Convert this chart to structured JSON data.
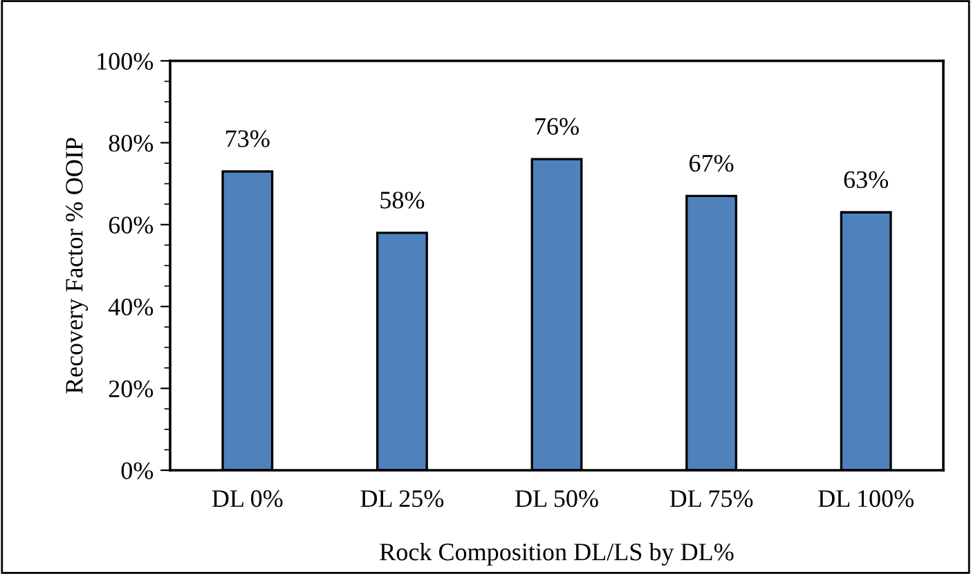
{
  "chart_data": {
    "type": "bar",
    "xlabel": "Rock Composition DL/LS by DL%",
    "ylabel": "Recovery Factor % OOIP",
    "categories": [
      "DL 0%",
      "DL 25%",
      "DL 50%",
      "DL 75%",
      "DL 100%"
    ],
    "values": [
      73,
      58,
      76,
      67,
      63
    ],
    "value_labels": [
      "73%",
      "58%",
      "76%",
      "67%",
      "63%"
    ],
    "color": "#4f81bd",
    "ylim": [
      0,
      100
    ],
    "yticks": [
      {
        "value": 0,
        "label": "0%"
      },
      {
        "value": 20,
        "label": "20%"
      },
      {
        "value": 40,
        "label": "40%"
      },
      {
        "value": 60,
        "label": "60%"
      },
      {
        "value": 80,
        "label": "80%"
      },
      {
        "value": 100,
        "label": "100%"
      }
    ],
    "grid": false,
    "legend": false
  }
}
